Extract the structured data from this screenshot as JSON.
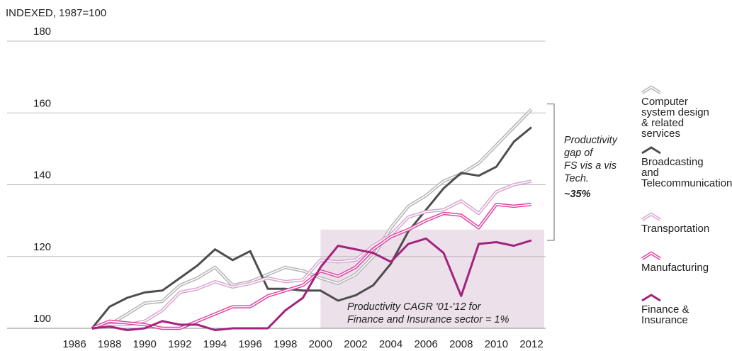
{
  "chart_data": {
    "type": "line",
    "subtitle": "INDEXED, 1987=100",
    "x": [
      1987,
      1988,
      1989,
      1990,
      1991,
      1992,
      1993,
      1994,
      1995,
      1996,
      1997,
      1998,
      1999,
      2000,
      2001,
      2002,
      2003,
      2004,
      2005,
      2006,
      2007,
      2008,
      2009,
      2010,
      2011,
      2012
    ],
    "series": [
      {
        "name": "Computer system design & related services",
        "color": "#b3b3b3",
        "double": true,
        "values": [
          100,
          101,
          104,
          107,
          107.5,
          112,
          114,
          117,
          112,
          113,
          115,
          117,
          116,
          114,
          112.5,
          115,
          120,
          128,
          134,
          137,
          141,
          143,
          146,
          151,
          156,
          161
        ]
      },
      {
        "name": "Broadcasting and Telecommunications",
        "color": "#4d4d4d",
        "double": false,
        "values": [
          100,
          106,
          108.5,
          110,
          110.5,
          114,
          117.5,
          122,
          119,
          121.5,
          111,
          111,
          110.5,
          110.5,
          107.7,
          109.2,
          112,
          118,
          127,
          133,
          139,
          143.3,
          142.5,
          145,
          152,
          156
        ]
      },
      {
        "name": "Transportation",
        "color": "#d7a3cf",
        "double": true,
        "values": [
          100,
          101,
          101,
          102,
          105,
          110,
          111,
          113,
          111.5,
          112.5,
          114,
          113,
          113.5,
          119,
          118.5,
          119,
          123,
          126,
          131,
          132.5,
          133,
          135.5,
          132,
          138,
          140,
          141
        ]
      },
      {
        "name": "Manufacturing",
        "color": "#e0429f",
        "double": true,
        "values": [
          100,
          102,
          101.5,
          101,
          100,
          100,
          102,
          104,
          106,
          106,
          109,
          110.5,
          112,
          116,
          114.5,
          117,
          122,
          125.5,
          127.5,
          130,
          132,
          131.5,
          128,
          134.5,
          134,
          134.5
        ]
      },
      {
        "name": "Finance & Insurance",
        "color": "#a3227f",
        "double": false,
        "values": [
          100,
          100.5,
          99.5,
          100,
          102,
          101,
          101,
          99.5,
          100,
          100,
          100,
          105,
          108.5,
          117,
          123,
          122,
          121,
          118.5,
          123.5,
          125,
          121,
          109,
          123.5,
          124,
          123,
          124.5
        ]
      }
    ],
    "xlim": [
      1986,
      2012
    ],
    "xticks": [
      1986,
      1988,
      1990,
      1992,
      1994,
      1996,
      1998,
      2000,
      2002,
      2004,
      2006,
      2008,
      2010,
      2012
    ],
    "ylim": [
      100,
      180
    ],
    "yticks": [
      100,
      120,
      140,
      160,
      180
    ],
    "grid": true,
    "shade": {
      "x0": 2000,
      "y1": 127.5,
      "color": "#ece0ea",
      "text": [
        "Productivity CAGR '01-'12 for",
        "Finance and Insurance sector = 1%"
      ]
    },
    "bracket": {
      "range": [
        124.5,
        162.5
      ],
      "text": [
        "Productivity",
        "gap of",
        "FS vis a vis",
        "Tech."
      ],
      "value_text": "~35%"
    }
  }
}
